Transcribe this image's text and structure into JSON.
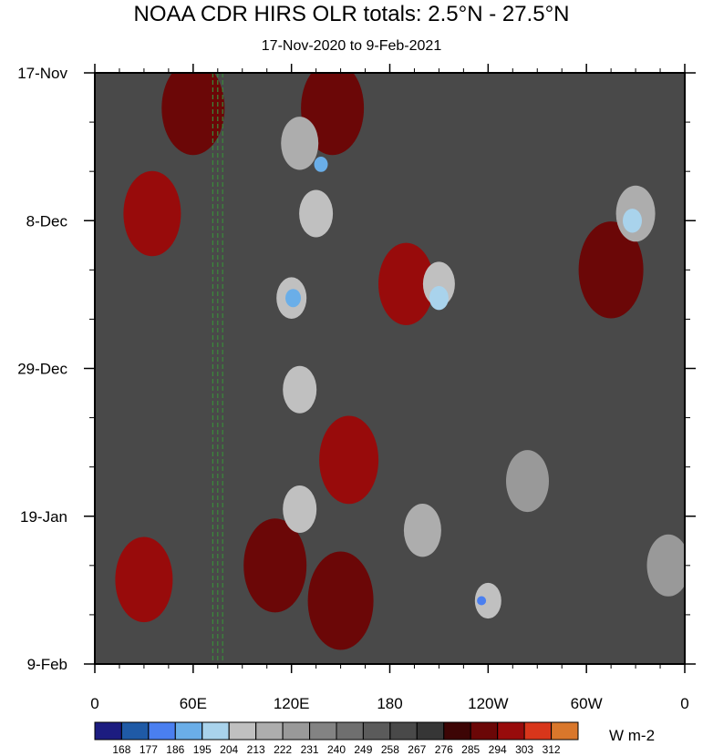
{
  "chart_data": {
    "type": "heatmap",
    "title": "NOAA CDR HIRS OLR totals: 2.5°N - 27.5°N",
    "subtitle": "17-Nov-2020 to 9-Feb-2021",
    "x_tick_labels": [
      "0",
      "60E",
      "120E",
      "180",
      "120W",
      "60W",
      "0"
    ],
    "x_ticks_deg": [
      0,
      60,
      120,
      180,
      240,
      300,
      360
    ],
    "xlim": [
      0,
      360
    ],
    "y_tick_labels": [
      "17-Nov",
      "8-Dec",
      "29-Dec",
      "19-Jan",
      "9-Feb"
    ],
    "y_ticks_day": [
      0,
      21,
      42,
      63,
      84
    ],
    "ylim": [
      0,
      84
    ],
    "colorbar_units": "W m-2",
    "colorbar_levels": [
      168,
      177,
      186,
      195,
      204,
      213,
      222,
      231,
      240,
      249,
      258,
      267,
      276,
      285,
      294,
      303,
      312
    ],
    "colorbar_colors": [
      "#1c1c80",
      "#1f5aa6",
      "#4a7ff0",
      "#6aaee8",
      "#a9d3ec",
      "#c0c0c0",
      "#adadad",
      "#999999",
      "#838383",
      "#6f6f6f",
      "#5b5b5b",
      "#494949",
      "#363636",
      "#3d0505",
      "#6b0707",
      "#980b0b",
      "#d8361b",
      "#d9772b"
    ],
    "reference_lines_deg": [
      72,
      75,
      78
    ],
    "features": [
      {
        "lon": 35,
        "day": 20,
        "value": 296
      },
      {
        "lon": 30,
        "day": 72,
        "value": 296
      },
      {
        "lon": 60,
        "day": 5,
        "value": 290
      },
      {
        "lon": 145,
        "day": 5,
        "value": 290
      },
      {
        "lon": 190,
        "day": 30,
        "value": 298
      },
      {
        "lon": 155,
        "day": 55,
        "value": 294
      },
      {
        "lon": 110,
        "day": 70,
        "value": 290
      },
      {
        "lon": 150,
        "day": 75,
        "value": 287
      },
      {
        "lon": 315,
        "day": 28,
        "value": 288
      },
      {
        "lon": 125,
        "day": 10,
        "value": 216
      },
      {
        "lon": 135,
        "day": 20,
        "value": 212
      },
      {
        "lon": 120,
        "day": 32,
        "value": 208
      },
      {
        "lon": 125,
        "day": 45,
        "value": 212
      },
      {
        "lon": 125,
        "day": 62,
        "value": 212
      },
      {
        "lon": 210,
        "day": 30,
        "value": 210
      },
      {
        "lon": 240,
        "day": 75,
        "value": 204
      },
      {
        "lon": 200,
        "day": 65,
        "value": 216
      },
      {
        "lon": 330,
        "day": 20,
        "value": 218
      },
      {
        "lon": 350,
        "day": 70,
        "value": 222
      },
      {
        "lon": 264,
        "day": 58,
        "value": 222
      },
      {
        "lon": 138,
        "day": 13,
        "value": 190
      },
      {
        "lon": 121,
        "day": 32,
        "value": 192
      },
      {
        "lon": 210,
        "day": 32,
        "value": 196
      },
      {
        "lon": 236,
        "day": 75,
        "value": 182
      },
      {
        "lon": 328,
        "day": 21,
        "value": 196
      }
    ]
  }
}
